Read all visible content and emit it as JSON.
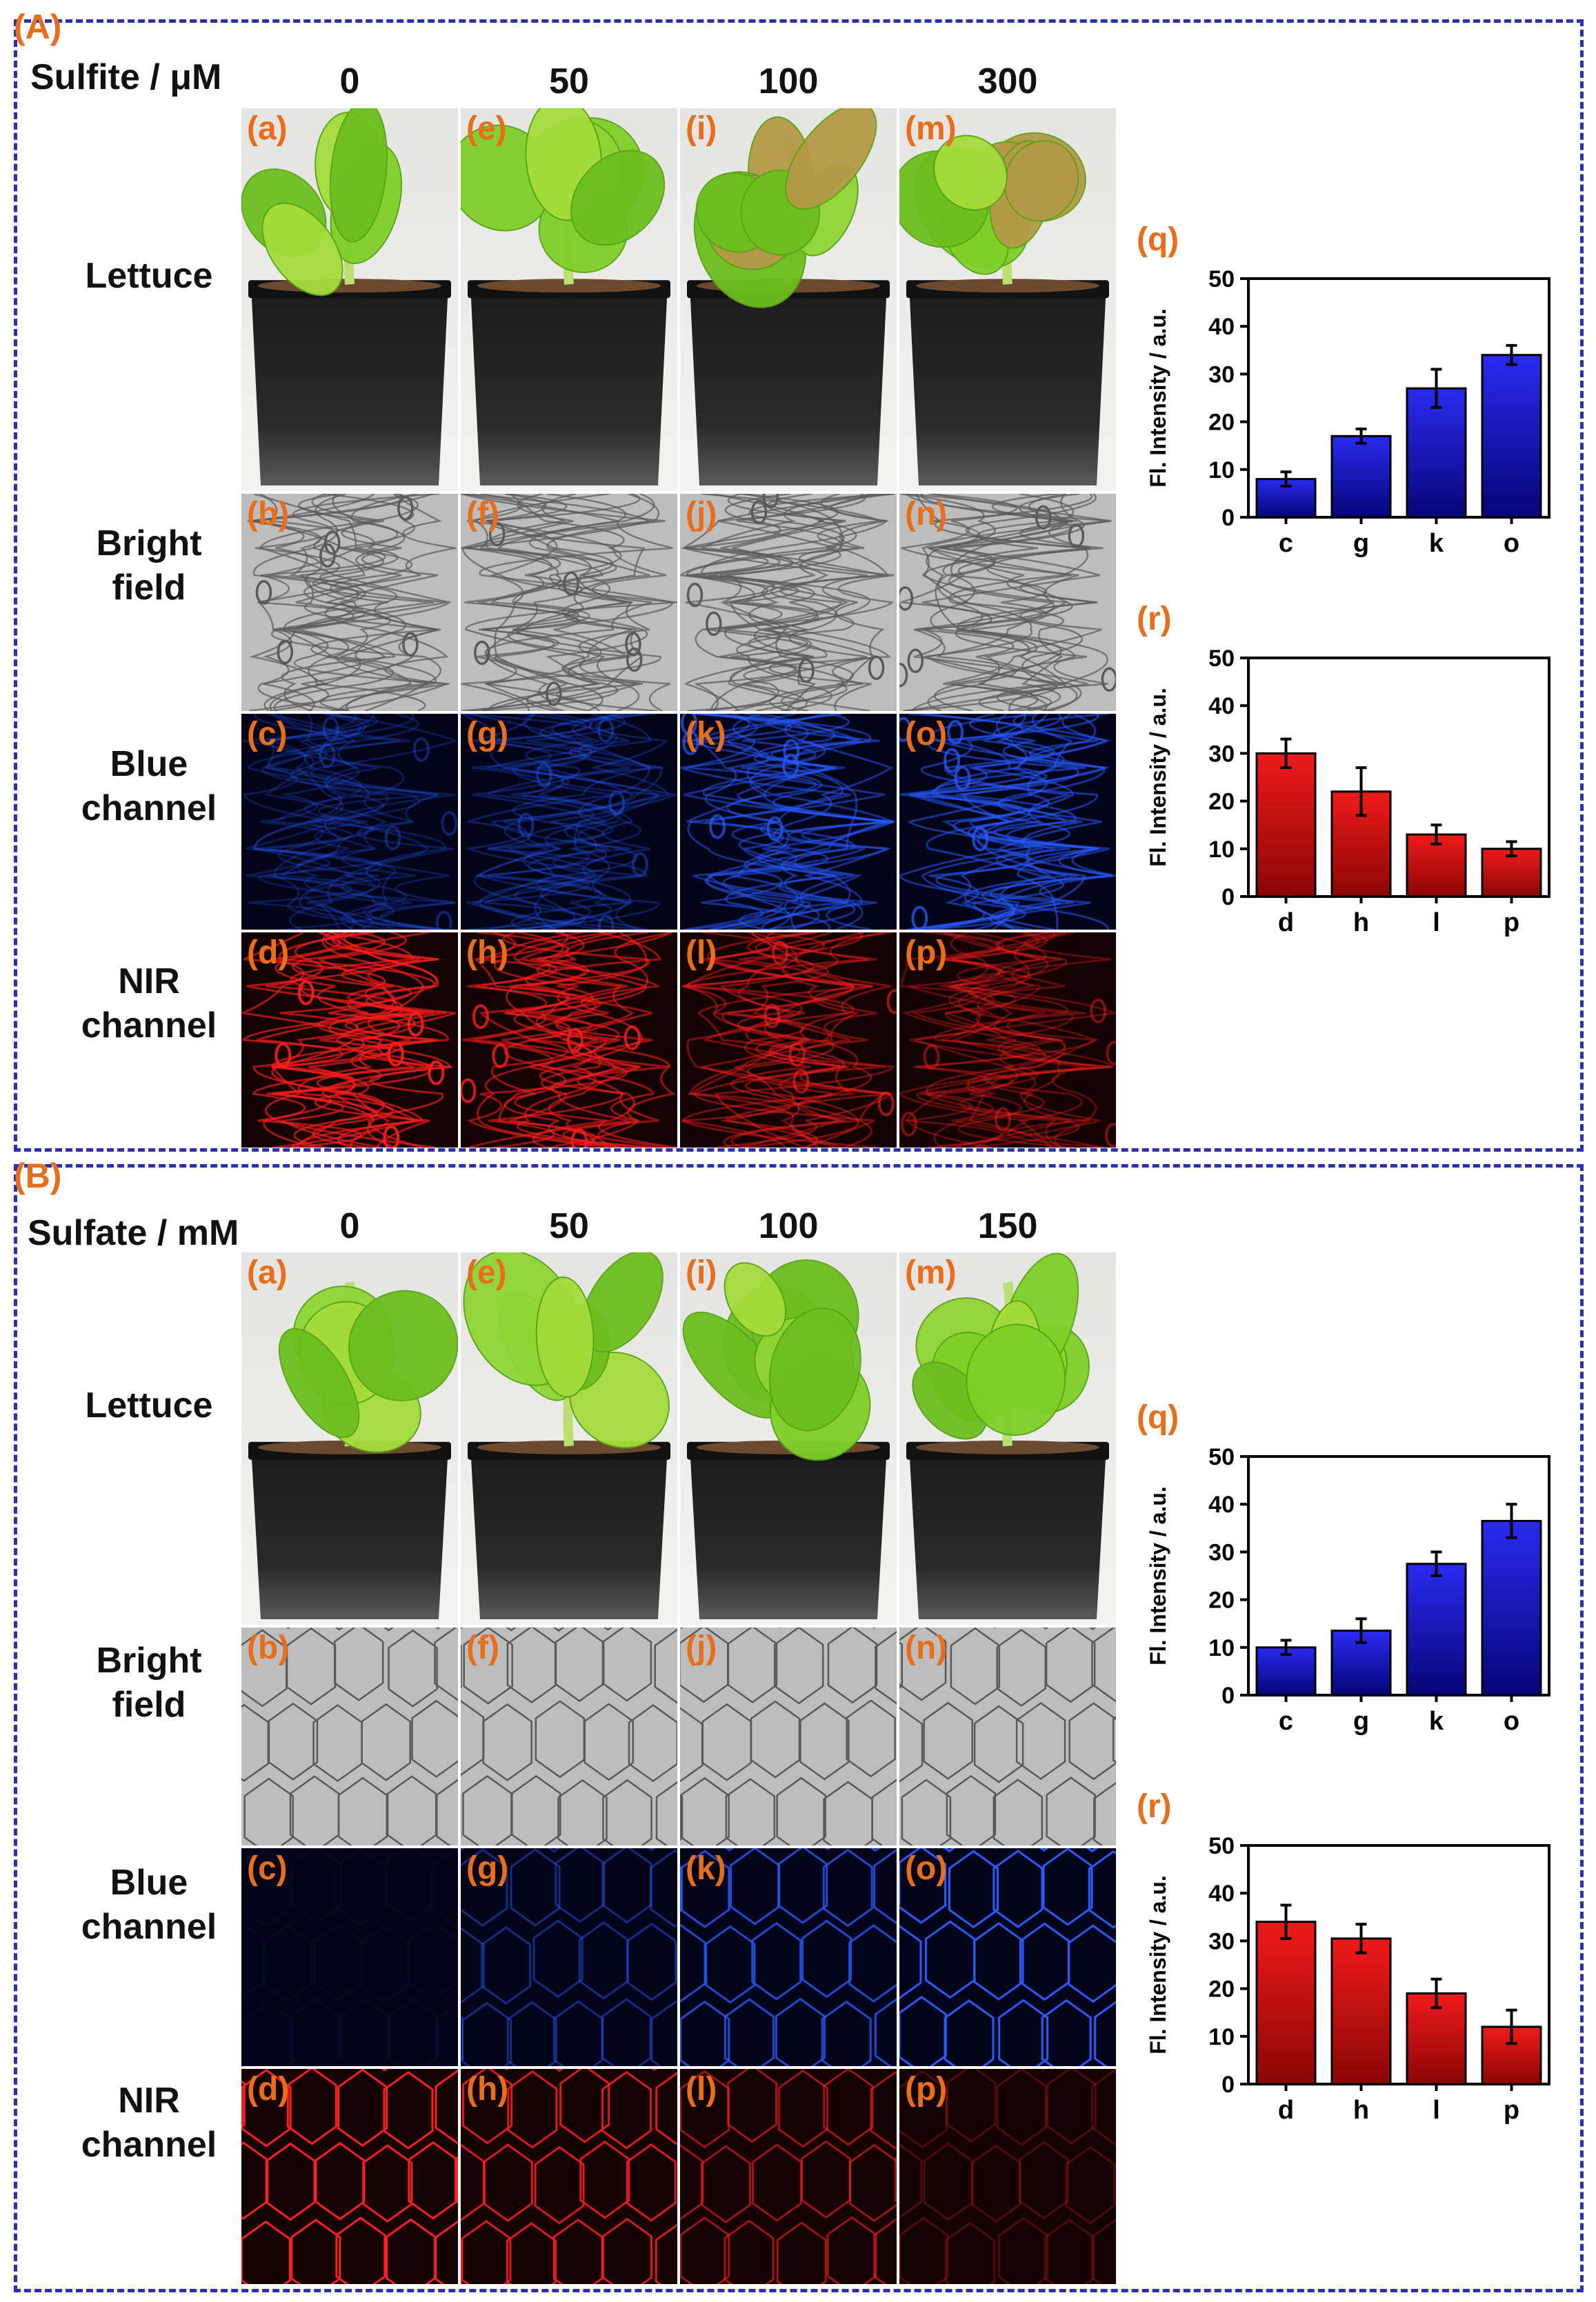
{
  "panels": [
    {
      "label": "(A)",
      "header": "Sulfite / μM",
      "columns": [
        "0",
        "50",
        "100",
        "300"
      ],
      "rows": [
        "Lettuce",
        "Bright field",
        "Blue channel",
        "NIR channel"
      ],
      "row_lines": [
        [
          "Lettuce"
        ],
        [
          "Bright",
          "field"
        ],
        [
          "Blue",
          "channel"
        ],
        [
          "NIR",
          "channel"
        ]
      ],
      "tile_letters": [
        [
          "(a)",
          "(e)",
          "(i)",
          "(m)"
        ],
        [
          "(b)",
          "(f)",
          "(j)",
          "(n)"
        ],
        [
          "(c)",
          "(g)",
          "(k)",
          "(o)"
        ],
        [
          "(d)",
          "(h)",
          "(l)",
          "(p)"
        ]
      ]
    },
    {
      "label": "(B)",
      "header": "Sulfate / mM",
      "columns": [
        "0",
        "50",
        "100",
        "150"
      ],
      "rows": [
        "Lettuce",
        "Bright field",
        "Blue channel",
        "NIR channel"
      ],
      "row_lines": [
        [
          "Lettuce"
        ],
        [
          "Bright",
          "field"
        ],
        [
          "Blue",
          "channel"
        ],
        [
          "NIR",
          "channel"
        ]
      ],
      "tile_letters": [
        [
          "(a)",
          "(e)",
          "(i)",
          "(m)"
        ],
        [
          "(b)",
          "(f)",
          "(j)",
          "(n)"
        ],
        [
          "(c)",
          "(g)",
          "(k)",
          "(o)"
        ],
        [
          "(d)",
          "(h)",
          "(l)",
          "(p)"
        ]
      ]
    }
  ],
  "chart_data": [
    {
      "panel": "A",
      "label": "(q)",
      "type": "bar",
      "categories": [
        "c",
        "g",
        "k",
        "o"
      ],
      "values": [
        8,
        17,
        27,
        34
      ],
      "errors": [
        1.5,
        1.5,
        4,
        2
      ],
      "ylabel": "Fl. Intensity / a.u.",
      "ylim": [
        0,
        50
      ],
      "yticks": [
        0,
        10,
        20,
        30,
        40,
        50
      ],
      "color": "blue"
    },
    {
      "panel": "A",
      "label": "(r)",
      "type": "bar",
      "categories": [
        "d",
        "h",
        "l",
        "p"
      ],
      "values": [
        30,
        22,
        13,
        10
      ],
      "errors": [
        3,
        5,
        2,
        1.5
      ],
      "ylabel": "Fl. Intensity / a.u.",
      "ylim": [
        0,
        50
      ],
      "yticks": [
        0,
        10,
        20,
        30,
        40,
        50
      ],
      "color": "red"
    },
    {
      "panel": "B",
      "label": "(q)",
      "type": "bar",
      "categories": [
        "c",
        "g",
        "k",
        "o"
      ],
      "values": [
        10,
        13.5,
        27.5,
        36.5
      ],
      "errors": [
        1.5,
        2.5,
        2.5,
        3.5
      ],
      "ylabel": "Fl. Intensity / a.u.",
      "ylim": [
        0,
        50
      ],
      "yticks": [
        0,
        10,
        20,
        30,
        40,
        50
      ],
      "color": "blue"
    },
    {
      "panel": "B",
      "label": "(r)",
      "type": "bar",
      "categories": [
        "d",
        "h",
        "l",
        "p"
      ],
      "values": [
        34,
        30.5,
        19,
        12
      ],
      "errors": [
        3.5,
        3,
        3,
        3.5
      ],
      "ylabel": "Fl. Intensity / a.u.",
      "ylim": [
        0,
        50
      ],
      "yticks": [
        0,
        10,
        20,
        30,
        40,
        50
      ],
      "color": "red"
    }
  ],
  "colors": {
    "accent_orange": "#e86e1c",
    "border_blue": "#2b2fb3",
    "bar_blue": "#1212c8",
    "bar_red": "#d81010"
  }
}
